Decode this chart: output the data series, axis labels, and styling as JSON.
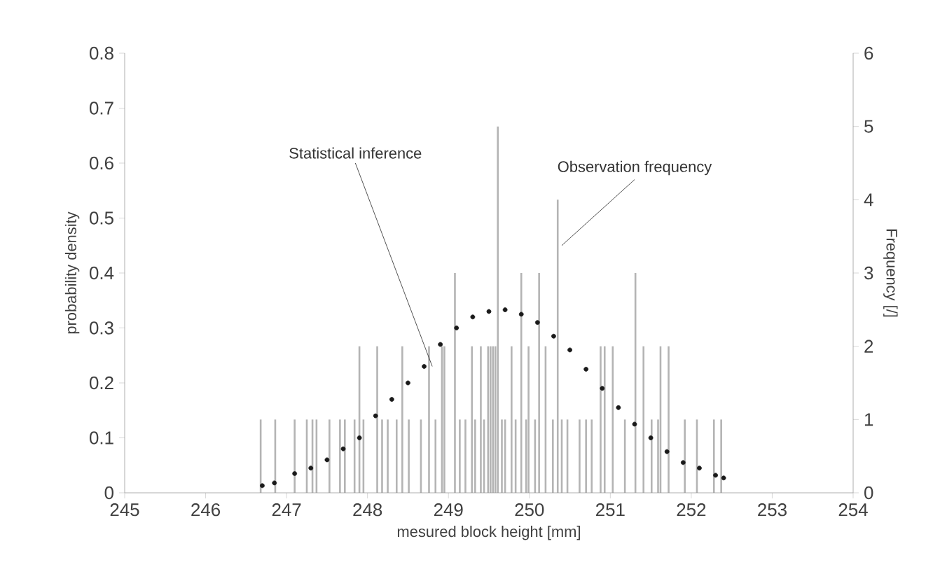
{
  "chart_data": {
    "type": "scatter",
    "xlabel": "mesured block height [mm]",
    "ylabel": "probability density",
    "y2label": "Frequency [/]",
    "xlim": [
      245,
      254
    ],
    "xticks": [
      245,
      246,
      247,
      248,
      249,
      250,
      251,
      252,
      253,
      254
    ],
    "ylim": [
      0,
      0.8
    ],
    "yticks": [
      0,
      0.1,
      0.2,
      0.3,
      0.4,
      0.5,
      0.6,
      0.7,
      0.8
    ],
    "y2lim": [
      0,
      6
    ],
    "y2ticks": [
      0,
      1,
      2,
      3,
      4,
      5,
      6
    ],
    "grid": false,
    "series": [
      {
        "marker": "circle",
        "color": "#1a1a1a",
        "x": [
          246.7,
          246.85,
          247.1,
          247.3,
          247.5,
          247.7,
          247.9,
          248.1,
          248.3,
          248.5,
          248.7,
          248.9,
          249.1,
          249.3,
          249.5,
          249.7,
          249.9,
          250.1,
          250.3,
          250.5,
          250.7,
          250.9,
          251.1,
          251.3,
          251.5,
          251.7,
          251.9,
          252.1,
          252.3,
          252.4
        ],
        "values": [
          0.013,
          0.018,
          0.035,
          0.045,
          0.06,
          0.08,
          0.1,
          0.14,
          0.17,
          0.2,
          0.23,
          0.27,
          0.3,
          0.32,
          0.33,
          0.333,
          0.325,
          0.31,
          0.285,
          0.26,
          0.225,
          0.19,
          0.155,
          0.125,
          0.1,
          0.075,
          0.055,
          0.045,
          0.032,
          0.027
        ]
      },
      {
        "type": "bar",
        "axis": "y2",
        "color": "#b4b4b4",
        "x": [
          246.68,
          246.86,
          247.1,
          247.25,
          247.32,
          247.37,
          247.53,
          247.66,
          247.72,
          247.84,
          247.9,
          247.95,
          248.12,
          248.18,
          248.25,
          248.36,
          248.43,
          248.51,
          248.66,
          248.76,
          248.84,
          248.92,
          248.95,
          249.08,
          249.14,
          249.21,
          249.29,
          249.33,
          249.4,
          249.44,
          249.49,
          249.52,
          249.55,
          249.58,
          249.61,
          249.66,
          249.7,
          249.78,
          249.83,
          249.9,
          249.96,
          249.99,
          250.07,
          250.12,
          250.2,
          250.29,
          250.35,
          250.4,
          250.47,
          250.62,
          250.7,
          250.77,
          250.88,
          250.93,
          251.03,
          251.18,
          251.31,
          251.41,
          251.51,
          251.59,
          251.62,
          251.72,
          251.92,
          252.07,
          252.28,
          252.37
        ],
        "values": [
          1,
          1,
          1,
          1,
          1,
          1,
          1,
          1,
          1,
          1,
          2,
          1,
          2,
          1,
          1,
          1,
          2,
          1,
          1,
          2,
          1,
          2,
          2,
          3,
          1,
          1,
          2,
          1,
          2,
          1,
          2,
          2,
          2,
          2,
          5,
          1,
          1,
          2,
          1,
          3,
          1,
          2,
          1,
          3,
          2,
          1,
          4,
          1,
          1,
          1,
          1,
          1,
          2,
          2,
          2,
          1,
          3,
          2,
          1,
          1,
          2,
          2,
          1,
          1,
          1,
          1
        ]
      }
    ],
    "annotations": [
      {
        "text": "Statistical inference",
        "x": 248.8,
        "y": 0.23
      },
      {
        "text": "Observation frequency",
        "x": 250.4,
        "y": 0.45
      }
    ]
  }
}
